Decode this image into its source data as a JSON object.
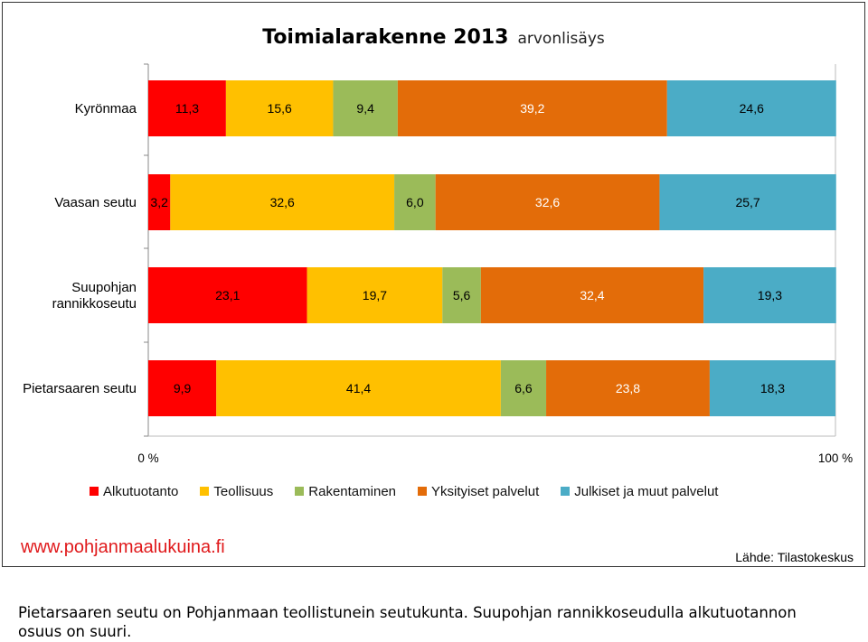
{
  "chart_data": {
    "type": "bar",
    "orientation": "horizontal",
    "stacked": true,
    "normalized_percent": true,
    "title": "Toimialarakenne 2013",
    "subtitle": "arvonlisäys",
    "categories": [
      "Kyrönmaa",
      "Vaasan seutu",
      "Suupohjan rannikkoseutu",
      "Pietarsaaren seutu"
    ],
    "category_lines": [
      [
        "Kyrönmaa"
      ],
      [
        "Vaasan seutu"
      ],
      [
        "Suupohjan",
        "rannikkoseutu"
      ],
      [
        "Pietarsaaren seutu"
      ]
    ],
    "series": [
      {
        "name": "Alkutuotanto",
        "color": "#ff0000",
        "values": [
          11.3,
          3.2,
          23.1,
          9.9
        ],
        "labels": [
          "11,3",
          "3,2",
          "23,1",
          "9,9"
        ]
      },
      {
        "name": "Teollisuus",
        "color": "#ffc000",
        "values": [
          15.6,
          32.6,
          19.7,
          41.4
        ],
        "labels": [
          "15,6",
          "32,6",
          "19,7",
          "41,4"
        ]
      },
      {
        "name": "Rakentaminen",
        "color": "#9bbb59",
        "values": [
          9.4,
          6.0,
          5.6,
          6.6
        ],
        "labels": [
          "9,4",
          "6,0",
          "5,6",
          "6,6"
        ]
      },
      {
        "name": "Yksityiset palvelut",
        "color": "#e36c09",
        "values": [
          39.2,
          32.6,
          32.4,
          23.8
        ],
        "labels": [
          "39,2",
          "32,6",
          "32,4",
          "23,8"
        ]
      },
      {
        "name": "Julkiset ja muut palvelut",
        "color": "#4bacc6",
        "values": [
          24.6,
          25.7,
          19.3,
          18.3
        ],
        "labels": [
          "24,6",
          "25,7",
          "19,3",
          "18,3"
        ]
      }
    ],
    "xlim": [
      0,
      100
    ],
    "x_tick_labels": [
      "0 %",
      "100 %"
    ],
    "grid": false,
    "legend_position": "bottom"
  },
  "website": "www.pohjanmaalukuina.fi",
  "source": "Lähde: Tilastokeskus",
  "caption": "Pietarsaaren seutu on Pohjanmaan teollistunein seutukunta. Suupohjan rannikkoseudulla alkutuotannon osuus on suuri."
}
